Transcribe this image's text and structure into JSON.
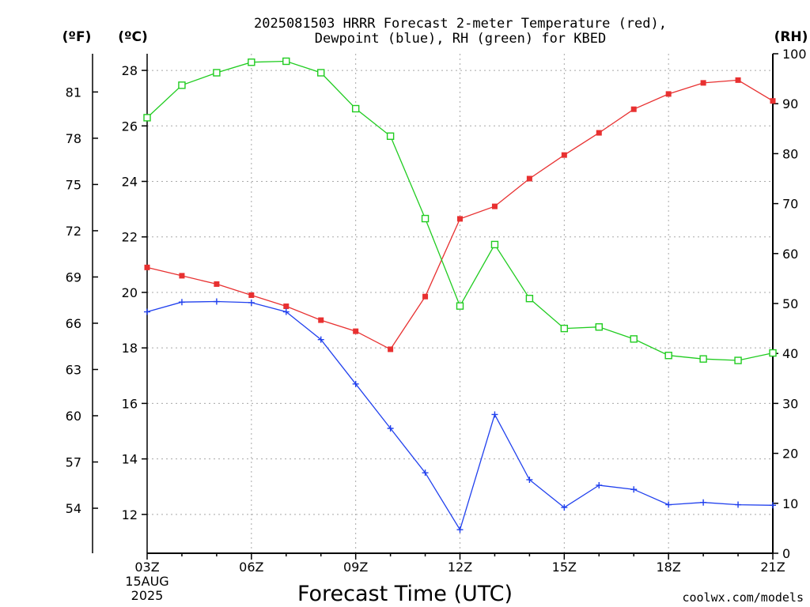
{
  "title_line1": "2025081503 HRRR Forecast 2-meter Temperature (red),",
  "title_line2": "Dewpoint (blue), RH (green) for KBED",
  "unit_f": "(ºF)",
  "unit_c": "(ºC)",
  "unit_rh": "(RH)",
  "xlabel": "Forecast Time (UTC)",
  "date_line1": "15AUG",
  "date_line2": "2025",
  "credit": "coolwx.com/models",
  "colors": {
    "temperature": "#e83030",
    "dewpoint": "#2040ee",
    "rh": "#20cc20",
    "credit": "#e83030"
  },
  "chart_data": {
    "type": "line",
    "x": [
      "03Z",
      "04Z",
      "05Z",
      "06Z",
      "07Z",
      "08Z",
      "09Z",
      "10Z",
      "11Z",
      "12Z",
      "13Z",
      "14Z",
      "15Z",
      "16Z",
      "17Z",
      "18Z",
      "19Z",
      "20Z",
      "21Z"
    ],
    "x_tick_labels": [
      "03Z",
      "06Z",
      "09Z",
      "12Z",
      "15Z",
      "18Z",
      "21Z"
    ],
    "celsius_axis": {
      "ylim": [
        10.6,
        28.6
      ],
      "ticks": [
        12,
        14,
        16,
        18,
        20,
        22,
        24,
        26,
        28
      ]
    },
    "fahrenheit_ticks": [
      54,
      57,
      60,
      63,
      66,
      69,
      72,
      75,
      78,
      81
    ],
    "rh_axis": {
      "ylim": [
        0,
        100
      ],
      "ticks": [
        0,
        10,
        20,
        30,
        40,
        50,
        60,
        70,
        80,
        90,
        100
      ]
    },
    "grid": true,
    "series": [
      {
        "key": "temperature",
        "axis": "celsius",
        "marker": "filled-square",
        "values": [
          20.9,
          20.6,
          20.3,
          19.9,
          19.5,
          19.0,
          18.6,
          17.95,
          19.85,
          22.65,
          23.1,
          24.1,
          24.95,
          25.75,
          26.6,
          27.15,
          27.55,
          27.65,
          26.9
        ]
      },
      {
        "key": "dewpoint",
        "axis": "celsius",
        "marker": "plus",
        "values": [
          19.3,
          19.65,
          19.67,
          19.63,
          19.3,
          18.3,
          16.7,
          15.1,
          13.5,
          11.45,
          15.6,
          13.25,
          12.25,
          13.05,
          12.9,
          12.35,
          12.43,
          12.35,
          12.33
        ]
      },
      {
        "key": "rh",
        "axis": "rh",
        "marker": "open-square",
        "values": [
          87.2,
          93.7,
          96.2,
          98.3,
          98.5,
          96.2,
          89.0,
          83.5,
          67.0,
          49.5,
          61.8,
          51.0,
          45.0,
          45.3,
          42.9,
          39.6,
          38.9,
          38.6,
          40.1
        ]
      }
    ]
  }
}
